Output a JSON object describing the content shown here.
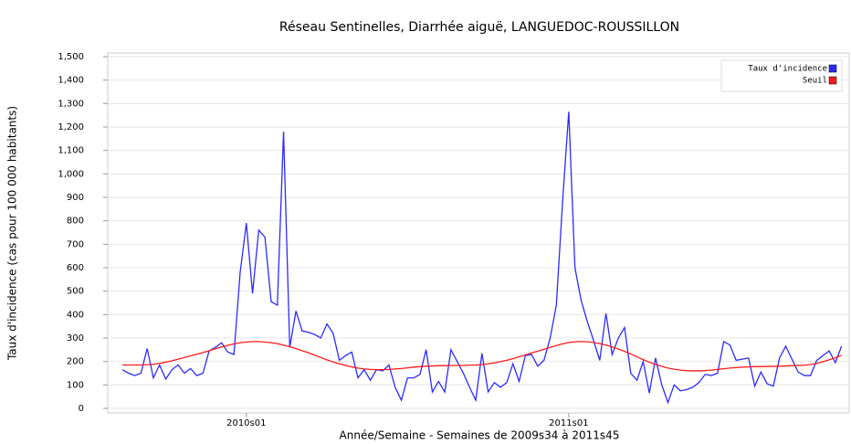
{
  "chart_data": {
    "type": "line",
    "title": "Réseau Sentinelles, Diarrhée aiguë, LANGUEDOC-ROUSSILLON",
    "xlabel": "Année/Semaine - Semaines de 2009s34 à 2011s45",
    "ylabel": "Taux d'incidence (cas pour 100 000 habitants)",
    "categories": [
      null,
      null,
      null,
      null,
      null,
      null,
      null,
      null,
      null,
      null,
      null,
      null,
      null,
      null,
      null,
      null,
      null,
      null,
      null,
      null,
      "2010s01",
      null,
      null,
      null,
      null,
      null,
      null,
      null,
      null,
      null,
      null,
      null,
      null,
      null,
      null,
      null,
      null,
      null,
      null,
      null,
      null,
      null,
      null,
      null,
      null,
      null,
      null,
      null,
      null,
      null,
      null,
      null,
      null,
      null,
      null,
      null,
      null,
      null,
      null,
      null,
      null,
      null,
      null,
      null,
      null,
      null,
      null,
      null,
      null,
      null,
      null,
      null,
      "2011s01",
      null,
      null,
      null,
      null,
      null,
      null,
      null,
      null,
      null,
      null,
      null,
      null,
      null,
      null,
      null,
      null,
      null,
      null,
      null,
      null,
      null,
      null,
      null,
      null,
      null,
      null,
      null,
      null,
      null,
      null,
      null,
      null,
      null,
      null,
      null,
      null,
      null,
      null,
      null,
      null,
      null,
      null,
      null,
      null
    ],
    "series": [
      {
        "name": "Taux d'incidence",
        "color": "#2b2bff",
        "values": [
          165,
          150,
          140,
          150,
          255,
          130,
          185,
          125,
          165,
          185,
          150,
          170,
          140,
          150,
          245,
          260,
          280,
          240,
          230,
          580,
          790,
          490,
          760,
          730,
          455,
          440,
          1180,
          260,
          415,
          330,
          325,
          315,
          300,
          360,
          320,
          205,
          225,
          240,
          130,
          165,
          120,
          165,
          160,
          185,
          90,
          35,
          130,
          130,
          145,
          250,
          70,
          115,
          70,
          250,
          200,
          150,
          90,
          35,
          235,
          70,
          110,
          90,
          110,
          190,
          115,
          225,
          230,
          180,
          205,
          300,
          440,
          880,
          1265,
          600,
          460,
          370,
          290,
          205,
          405,
          230,
          300,
          345,
          150,
          120,
          200,
          65,
          215,
          100,
          25,
          100,
          75,
          80,
          90,
          110,
          145,
          140,
          150,
          285,
          270,
          205,
          210,
          215,
          95,
          155,
          105,
          95,
          215,
          265,
          210,
          155,
          140,
          140,
          205,
          225,
          245,
          195,
          265
        ]
      },
      {
        "name": "Seuil",
        "color": "#ff1a1a",
        "values": [
          185,
          185,
          185,
          185,
          186,
          188,
          192,
          197,
          203,
          210,
          217,
          224,
          231,
          238,
          246,
          254,
          262,
          269,
          275,
          280,
          283,
          285,
          285,
          283,
          280,
          276,
          270,
          263,
          255,
          246,
          237,
          227,
          217,
          207,
          198,
          190,
          183,
          177,
          172,
          168,
          166,
          165,
          165,
          166,
          168,
          170,
          173,
          176,
          178,
          180,
          181,
          182,
          182,
          183,
          183,
          183,
          184,
          185,
          187,
          190,
          194,
          199,
          205,
          212,
          220,
          228,
          236,
          244,
          252,
          260,
          268,
          275,
          281,
          284,
          285,
          284,
          281,
          276,
          270,
          262,
          253,
          243,
          232,
          220,
          208,
          197,
          187,
          179,
          172,
          167,
          163,
          161,
          160,
          160,
          161,
          163,
          166,
          169,
          172,
          174,
          176,
          177,
          178,
          178,
          179,
          179,
          180,
          181,
          182,
          183,
          184,
          187,
          192,
          199,
          207,
          216,
          226
        ]
      }
    ],
    "ylim": [
      0,
      1500
    ],
    "yticks": [
      0,
      100,
      200,
      300,
      400,
      500,
      600,
      700,
      800,
      900,
      {
        "value": 1000,
        "label": "1,000"
      },
      {
        "value": 1100,
        "label": "1,100"
      },
      {
        "value": 1200,
        "label": "1,200"
      },
      {
        "value": 1300,
        "label": "1,300"
      },
      {
        "value": 1400,
        "label": "1,400"
      },
      {
        "value": 1500,
        "label": "1,500"
      }
    ],
    "grid": true,
    "legend": "upper right"
  }
}
